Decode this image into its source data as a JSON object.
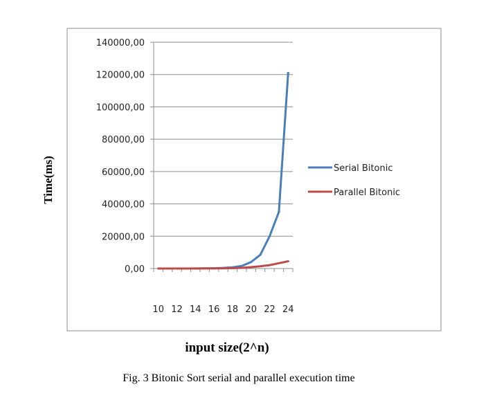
{
  "chart_data": {
    "type": "line",
    "title": "",
    "xlabel": "input size(2^n)",
    "ylabel": "Time(ms)",
    "x": [
      10,
      11,
      12,
      13,
      14,
      15,
      16,
      17,
      18,
      19,
      20,
      21,
      22,
      23,
      24
    ],
    "x_tick_labels": [
      "10",
      "12",
      "14",
      "16",
      "18",
      "20",
      "22",
      "24"
    ],
    "x_tick_values": [
      10,
      12,
      14,
      16,
      18,
      20,
      22,
      24
    ],
    "y_tick_labels": [
      "0,00",
      "20000,00",
      "40000,00",
      "60000,00",
      "80000,00",
      "100000,00",
      "120000,00",
      "140000,00"
    ],
    "y_tick_values": [
      0,
      20000,
      40000,
      60000,
      80000,
      100000,
      120000,
      140000
    ],
    "ylim": [
      0,
      140000
    ],
    "grid": true,
    "legend_position": "right",
    "series": [
      {
        "name": "Serial Bitonic",
        "color": "#4a7ebb",
        "values": [
          2,
          4,
          8,
          18,
          38,
          80,
          170,
          360,
          760,
          1600,
          4000,
          8500,
          20000,
          35000,
          121000
        ]
      },
      {
        "name": "Parallel Bitonic",
        "color": "#be4b48",
        "values": [
          3,
          5,
          7,
          12,
          22,
          40,
          70,
          130,
          240,
          450,
          850,
          1400,
          2100,
          3300,
          4500
        ]
      }
    ]
  },
  "caption": "Fig. 3 Bitonic Sort serial and parallel execution time"
}
